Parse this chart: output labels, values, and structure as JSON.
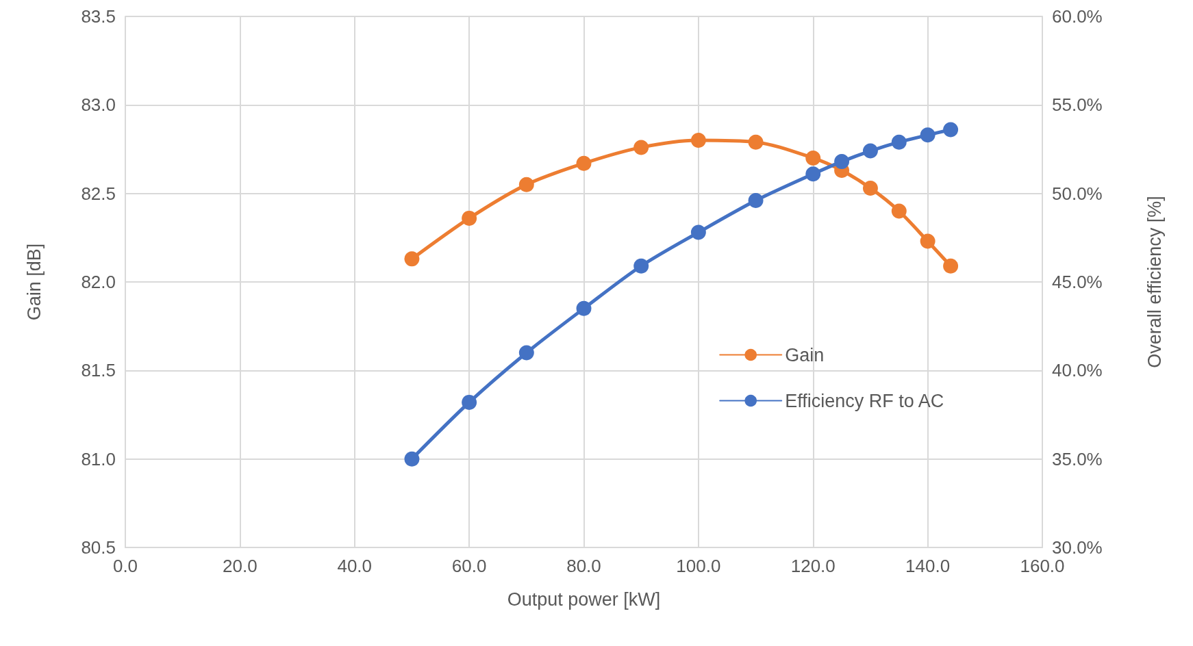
{
  "chart_data": {
    "type": "line",
    "xlabel": "Output power [kW]",
    "ylabel": "Gain [dB]",
    "y2label": "Overall efficiency [%]",
    "xlim": [
      0,
      160
    ],
    "xticks": [
      {
        "value": 0,
        "label": "0.0"
      },
      {
        "value": 20,
        "label": "20.0"
      },
      {
        "value": 40,
        "label": "40.0"
      },
      {
        "value": 60,
        "label": "60.0"
      },
      {
        "value": 80,
        "label": "80.0"
      },
      {
        "value": 100,
        "label": "100.0"
      },
      {
        "value": 120,
        "label": "120.0"
      },
      {
        "value": 140,
        "label": "140.0"
      },
      {
        "value": 160,
        "label": "160.0"
      }
    ],
    "ylim": [
      80.5,
      83.5
    ],
    "yticks": [
      80.5,
      {
        "value": 81,
        "label": "81.0"
      },
      81.5,
      {
        "value": 82,
        "label": "82.0"
      },
      82.5,
      {
        "value": 83,
        "label": "83.0"
      },
      83.5
    ],
    "y2lim": [
      30,
      60
    ],
    "y2ticks": [
      {
        "value": 30,
        "label": "30.0%"
      },
      {
        "value": 35,
        "label": "35.0%"
      },
      {
        "value": 40,
        "label": "40.0%"
      },
      {
        "value": 45,
        "label": "45.0%"
      },
      {
        "value": 50,
        "label": "50.0%"
      },
      {
        "value": 55,
        "label": "55.0%"
      },
      {
        "value": 60,
        "label": "60.0%"
      }
    ],
    "x": [
      50,
      60,
      70,
      80,
      90,
      100,
      110,
      120,
      125,
      130,
      135,
      140,
      144
    ],
    "series": [
      {
        "name": "Gain",
        "color": "#ed7d31",
        "values": [
          82.13,
          82.36,
          82.55,
          82.67,
          82.76,
          82.8,
          82.79,
          82.7,
          82.63,
          82.53,
          82.4,
          82.23,
          82.09
        ]
      },
      {
        "name": "Efficiency RF to AC",
        "color": "#4472c4",
        "axis": "y2",
        "values": [
          35.0,
          38.2,
          41.0,
          43.5,
          45.9,
          47.8,
          49.6,
          51.1,
          51.8,
          52.4,
          52.9,
          53.3,
          53.6
        ]
      }
    ],
    "grid": true,
    "legend": "right",
    "marker": "circle",
    "line_style": "solid"
  }
}
